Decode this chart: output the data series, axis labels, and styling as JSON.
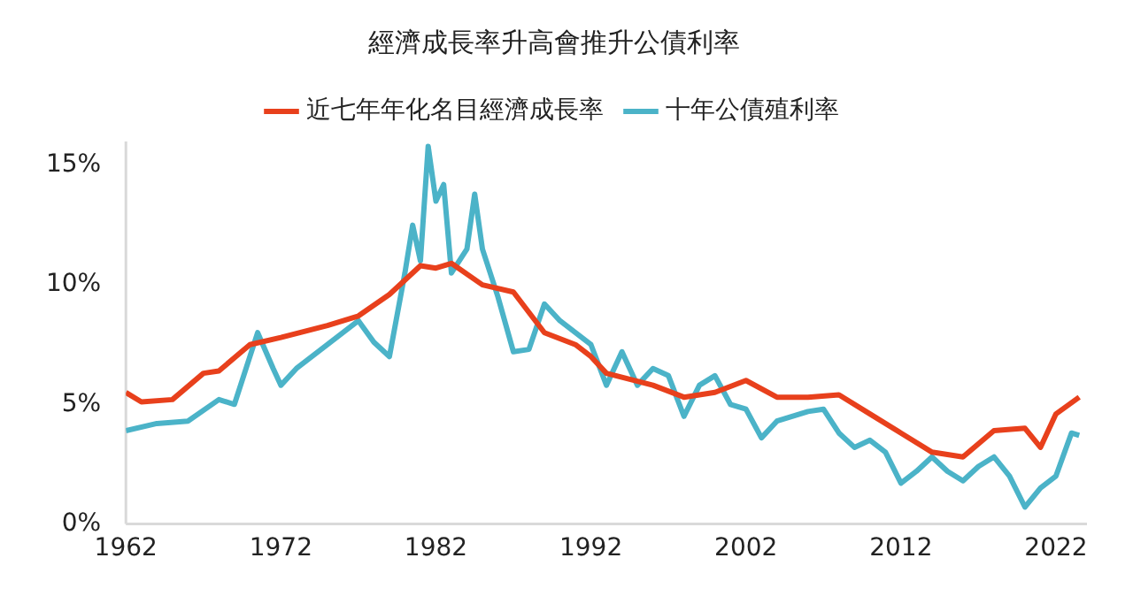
{
  "chart_data": {
    "type": "line",
    "title": "經濟成長率升高會推升公債利率",
    "xlim": [
      1962,
      2024
    ],
    "xticks": [
      1962,
      1972,
      1982,
      1992,
      2002,
      2012,
      2022
    ],
    "ylim": [
      0,
      16
    ],
    "yticks": [
      {
        "value": 0,
        "label": "0%"
      },
      {
        "value": 5,
        "label": "5%"
      },
      {
        "value": 10,
        "label": "10%"
      },
      {
        "value": 15,
        "label": "15%"
      }
    ],
    "grid": false,
    "legend": "top",
    "marker": "none",
    "line_style": "solid",
    "series": [
      {
        "name": "近七年年化名目經濟成長率",
        "color": "#e8401c",
        "x": [
          1962,
          1963,
          1965,
          1967,
          1968,
          1970,
          1972,
          1975,
          1977,
          1979,
          1981,
          1982,
          1983,
          1985,
          1987,
          1989,
          1991,
          1992,
          1993,
          1996,
          1998,
          2000,
          2002,
          2004,
          2006,
          2008,
          2010,
          2012,
          2014,
          2016,
          2018,
          2020,
          2021,
          2022,
          2023.5
        ],
        "values": [
          5.5,
          5.1,
          5.2,
          6.3,
          6.4,
          7.5,
          7.8,
          8.3,
          8.7,
          9.6,
          10.8,
          10.7,
          10.9,
          10.0,
          9.7,
          8.0,
          7.5,
          7.0,
          6.3,
          5.8,
          5.3,
          5.5,
          6.0,
          5.3,
          5.3,
          5.4,
          4.6,
          3.8,
          3.0,
          2.8,
          3.9,
          4.0,
          3.2,
          4.6,
          5.3
        ]
      },
      {
        "name": "十年公債殖利率",
        "color": "#4bb3c8",
        "x": [
          1962,
          1964,
          1966,
          1968,
          1969,
          1970.5,
          1971.5,
          1972,
          1973,
          1975,
          1977,
          1978,
          1979,
          1980,
          1980.5,
          1981,
          1981.5,
          1982,
          1982.5,
          1983,
          1984,
          1984.5,
          1985,
          1986,
          1987,
          1988,
          1989,
          1990,
          1991,
          1992,
          1993,
          1994,
          1995,
          1996,
          1997,
          1998,
          1999,
          2000,
          2001,
          2002,
          2003,
          2004,
          2006,
          2007,
          2008,
          2009,
          2010,
          2011,
          2012,
          2013,
          2014,
          2015,
          2016,
          2017,
          2018,
          2019,
          2020,
          2021,
          2022,
          2023,
          2023.5
        ],
        "values": [
          3.9,
          4.2,
          4.3,
          5.2,
          5.0,
          8.0,
          6.5,
          5.8,
          6.5,
          7.5,
          8.5,
          7.6,
          7.0,
          10.5,
          12.5,
          11.0,
          15.8,
          13.5,
          14.2,
          10.5,
          11.5,
          13.8,
          11.5,
          9.5,
          7.2,
          7.3,
          9.2,
          8.5,
          8.0,
          7.5,
          5.8,
          7.2,
          5.8,
          6.5,
          6.2,
          4.5,
          5.8,
          6.2,
          5.0,
          4.8,
          3.6,
          4.3,
          4.7,
          4.8,
          3.8,
          3.2,
          3.5,
          3.0,
          1.7,
          2.2,
          2.8,
          2.2,
          1.8,
          2.4,
          2.8,
          2.0,
          0.7,
          1.5,
          2.0,
          3.8,
          3.7
        ]
      }
    ]
  }
}
